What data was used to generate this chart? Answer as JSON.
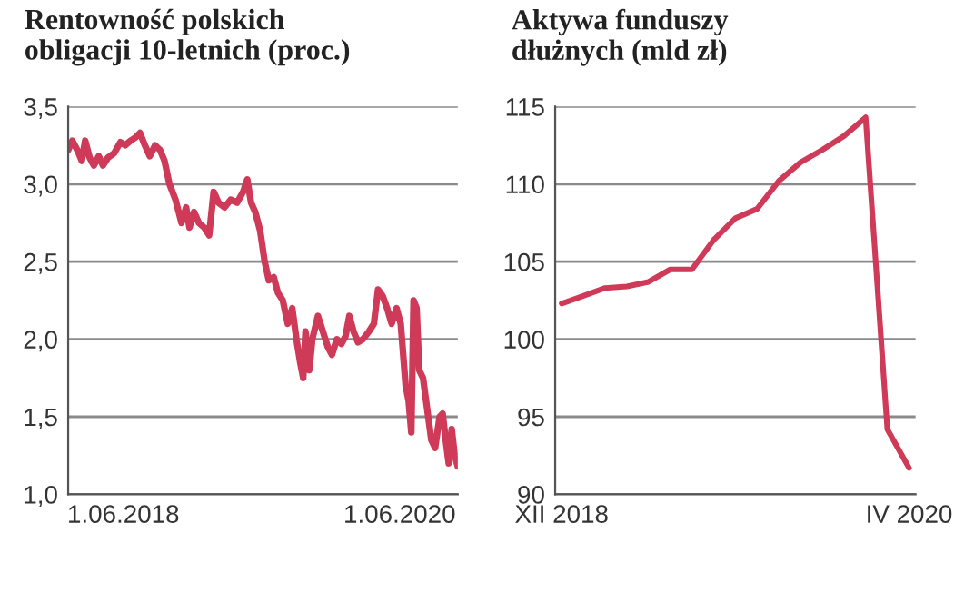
{
  "chart_data": [
    {
      "type": "line",
      "title": "Rentowność polskich\nobligacji 10-letnich (proc.)",
      "grid": "y",
      "marker": "none",
      "line_style": "solid",
      "xlim": [
        "2018-01-06",
        "2020-11-02"
      ],
      "xticks": [
        {
          "value": "2018-06-01",
          "label": "1.06.2018"
        },
        {
          "value": "2020-06-01",
          "label": "1.06.2020"
        }
      ],
      "ylim": [
        1.0,
        3.5
      ],
      "yticks": [
        {
          "value": 1.0,
          "label": "1,0"
        },
        {
          "value": 1.5,
          "label": "1,5"
        },
        {
          "value": 2.0,
          "label": "2,0"
        },
        {
          "value": 2.5,
          "label": "2,5"
        },
        {
          "value": 3.0,
          "label": "3,0"
        },
        {
          "value": 3.5,
          "label": "3,5"
        }
      ],
      "x": [
        "2018-01-06",
        "2018-01-17",
        "2018-01-30",
        "2018-02-11",
        "2018-02-20",
        "2018-03-04",
        "2018-03-15",
        "2018-03-28",
        "2018-04-08",
        "2018-04-21",
        "2018-05-08",
        "2018-05-24",
        "2018-06-06",
        "2018-06-20",
        "2018-07-03",
        "2018-07-15",
        "2018-07-28",
        "2018-08-10",
        "2018-08-24",
        "2018-09-06",
        "2018-09-18",
        "2018-10-01",
        "2018-10-17",
        "2018-11-02",
        "2018-11-14",
        "2018-11-23",
        "2018-12-05",
        "2018-12-18",
        "2019-01-01",
        "2019-01-14",
        "2019-01-26",
        "2019-02-08",
        "2019-02-24",
        "2019-03-12",
        "2019-03-29",
        "2019-04-14",
        "2019-04-25",
        "2019-05-05",
        "2019-05-16",
        "2019-05-29",
        "2019-06-10",
        "2019-06-21",
        "2019-07-04",
        "2019-07-15",
        "2019-07-28",
        "2019-08-10",
        "2019-08-22",
        "2019-09-02",
        "2019-09-12",
        "2019-09-20",
        "2019-09-26",
        "2019-10-06",
        "2019-10-14",
        "2019-10-29",
        "2019-11-11",
        "2019-11-24",
        "2019-12-05",
        "2019-12-18",
        "2019-12-30",
        "2020-01-10",
        "2020-01-20",
        "2020-01-31",
        "2020-02-12",
        "2020-02-25",
        "2020-03-12",
        "2020-03-25",
        "2020-04-05",
        "2020-04-17",
        "2020-04-29",
        "2020-05-11",
        "2020-05-24",
        "2020-06-04",
        "2020-06-17",
        "2020-06-25",
        "2020-07-02",
        "2020-07-08",
        "2020-07-16",
        "2020-07-23",
        "2020-08-02",
        "2020-08-13",
        "2020-08-24",
        "2020-09-03",
        "2020-09-15",
        "2020-09-23",
        "2020-10-01",
        "2020-10-09",
        "2020-10-17",
        "2020-10-25",
        "2020-11-02"
      ],
      "series": [
        {
          "color": "#cf3a58",
          "values": [
            3.22,
            3.28,
            3.22,
            3.15,
            3.28,
            3.17,
            3.12,
            3.18,
            3.12,
            3.17,
            3.2,
            3.27,
            3.25,
            3.28,
            3.3,
            3.33,
            3.25,
            3.18,
            3.25,
            3.22,
            3.15,
            3.0,
            2.9,
            2.75,
            2.85,
            2.72,
            2.82,
            2.75,
            2.72,
            2.67,
            2.95,
            2.88,
            2.85,
            2.9,
            2.88,
            2.95,
            3.03,
            2.88,
            2.82,
            2.7,
            2.5,
            2.38,
            2.4,
            2.3,
            2.25,
            2.1,
            2.2,
            2.0,
            1.85,
            1.75,
            2.05,
            1.8,
            2.0,
            2.15,
            2.05,
            1.95,
            1.9,
            2.0,
            1.97,
            2.02,
            2.15,
            2.05,
            1.98,
            2.0,
            2.05,
            2.1,
            2.32,
            2.28,
            2.2,
            2.1,
            2.2,
            2.1,
            1.7,
            1.6,
            1.4,
            2.25,
            2.2,
            1.8,
            1.75,
            1.55,
            1.35,
            1.3,
            1.5,
            1.52,
            1.35,
            1.2,
            1.42,
            1.25,
            1.18
          ]
        }
      ]
    },
    {
      "type": "line",
      "title": "Aktywa funduszy\ndłużnych (mld zł)",
      "grid": "y",
      "marker": "none",
      "line_style": "solid",
      "categories": [
        "XII 2018",
        null,
        null,
        null,
        null,
        null,
        null,
        null,
        null,
        null,
        null,
        null,
        null,
        null,
        null,
        null,
        "IV 2020"
      ],
      "ylim": [
        90,
        115
      ],
      "yticks": [
        90,
        95,
        100,
        105,
        110,
        115
      ],
      "series": [
        {
          "color": "#cf3a58",
          "values": [
            102.3,
            102.8,
            103.3,
            103.4,
            103.7,
            104.5,
            104.5,
            106.4,
            107.8,
            108.4,
            110.2,
            111.4,
            112.2,
            113.1,
            114.3,
            94.2,
            91.7
          ]
        }
      ]
    }
  ]
}
